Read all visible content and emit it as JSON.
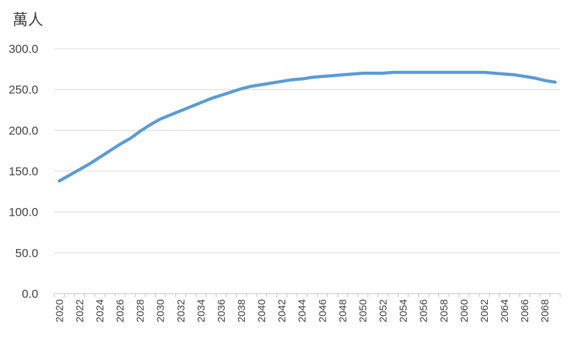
{
  "chart_data": {
    "type": "line",
    "title": "",
    "xlabel": "",
    "ylabel": "萬人",
    "ylim": [
      0,
      300
    ],
    "yticks": [
      "0.0",
      "50.0",
      "100.0",
      "150.0",
      "200.0",
      "250.0",
      "300.0"
    ],
    "grid": true,
    "legend": "none",
    "line_color": "#5b9bd5",
    "x": [
      2020,
      2021,
      2022,
      2023,
      2024,
      2025,
      2026,
      2027,
      2028,
      2029,
      2030,
      2031,
      2032,
      2033,
      2034,
      2035,
      2036,
      2037,
      2038,
      2039,
      2040,
      2041,
      2042,
      2043,
      2044,
      2045,
      2046,
      2047,
      2048,
      2049,
      2050,
      2051,
      2052,
      2053,
      2054,
      2055,
      2056,
      2057,
      2058,
      2059,
      2060,
      2061,
      2062,
      2063,
      2064,
      2065,
      2066,
      2067,
      2068,
      2069
    ],
    "xtick_labels": [
      "2020",
      "2022",
      "2024",
      "2026",
      "2028",
      "2030",
      "2032",
      "2034",
      "2036",
      "2038",
      "2040",
      "2042",
      "2044",
      "2046",
      "2048",
      "2050",
      "2052",
      "2054",
      "2056",
      "2058",
      "2060",
      "2062",
      "2064",
      "2066",
      "2068"
    ],
    "series": [
      {
        "values": [
          138,
          145,
          152,
          159,
          167,
          175,
          183,
          190,
          199,
          207,
          214,
          219,
          224,
          229,
          234,
          239,
          243,
          247,
          251,
          254,
          256,
          258,
          260,
          262,
          263,
          265,
          266,
          267,
          268,
          269,
          270,
          270,
          270,
          271,
          271,
          271,
          271,
          271,
          271,
          271,
          271,
          271,
          271,
          270,
          269,
          268,
          266,
          264,
          261,
          259
        ]
      }
    ]
  }
}
